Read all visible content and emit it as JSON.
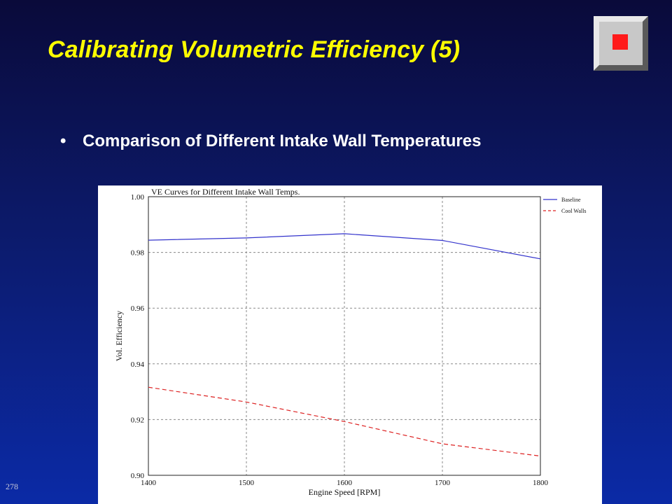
{
  "slide": {
    "title": "Calibrating Volumetric Efficiency (5)",
    "bullet": "Comparison of Different Intake Wall Temperatures",
    "page_number": "278"
  },
  "logo": {
    "icon": "red-square-logo-icon"
  },
  "colors": {
    "title": "#ffff00",
    "baseline": "#3333cc",
    "cool_walls": "#dd2222"
  },
  "chart_data": {
    "type": "line",
    "title": "VE Curves for Different Intake Wall Temps.",
    "xlabel": "Engine Speed [RPM]",
    "ylabel": "Vol. Efficiency",
    "xlim": [
      1400,
      1800
    ],
    "ylim": [
      0.9,
      1.0
    ],
    "x_ticks": [
      "1400",
      "1500",
      "1600",
      "1700",
      "1800"
    ],
    "y_ticks": [
      "0.90",
      "0.92",
      "0.94",
      "0.96",
      "0.98",
      "1.00"
    ],
    "grid": true,
    "legend_position": "top-right",
    "x": [
      1400,
      1500,
      1600,
      1700,
      1800
    ],
    "series": [
      {
        "name": "Baseline",
        "style": "solid",
        "values": [
          0.9844,
          0.9852,
          0.9867,
          0.9843,
          0.9777
        ]
      },
      {
        "name": "Cool Walls",
        "style": "dashed",
        "values": [
          0.9316,
          0.9263,
          0.9193,
          0.9113,
          0.9069
        ]
      }
    ]
  }
}
